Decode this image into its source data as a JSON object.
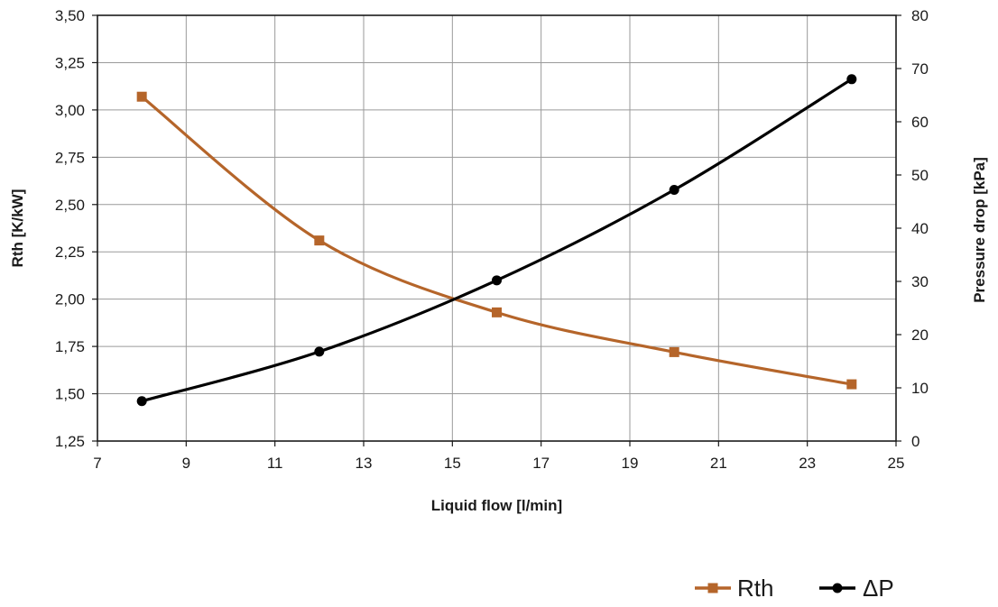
{
  "chart_data": {
    "type": "line",
    "title": "",
    "xlabel": "Liquid flow [l/min]",
    "ylabel": "Rth [K/kW]",
    "y2label": "Pressure drop [kPa]",
    "xlim": [
      7,
      25
    ],
    "ylim": [
      1.25,
      3.5
    ],
    "y2lim": [
      0,
      80
    ],
    "x_ticks": [
      "7",
      "9",
      "11",
      "13",
      "15",
      "17",
      "19",
      "21",
      "23",
      "25"
    ],
    "y_ticks": [
      "1,25",
      "1,50",
      "1,75",
      "2,00",
      "2,25",
      "2,50",
      "2,75",
      "3,00",
      "3,25",
      "3,50"
    ],
    "y2_ticks": [
      "0",
      "10",
      "20",
      "30",
      "40",
      "50",
      "60",
      "70",
      "80"
    ],
    "grid": true,
    "legend_position": "bottom-right",
    "series": [
      {
        "name": "Rth",
        "axis": "left",
        "marker": "square",
        "color": "#B5652A",
        "x": [
          8,
          12,
          16,
          20,
          24
        ],
        "y": [
          3.07,
          2.31,
          1.93,
          1.72,
          1.55
        ]
      },
      {
        "name": "ΔP",
        "axis": "right",
        "marker": "circle",
        "color": "#000000",
        "x": [
          8,
          12,
          16,
          20,
          24
        ],
        "y": [
          7.5,
          16.8,
          30.2,
          47.2,
          68
        ]
      }
    ]
  }
}
